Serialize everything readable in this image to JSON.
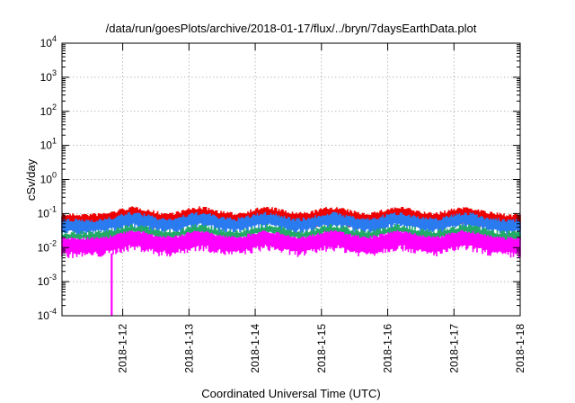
{
  "chart_data": {
    "type": "line",
    "title": "/data/run/goesPlots/archive/2018-01-17/flux/../bryn/7daysEarthData.plot",
    "xlabel": "Coordinated Universal Time (UTC)",
    "ylabel": "cSv/day",
    "xlim": [
      "2018-01-11T02:00",
      "2018-01-18T00:00"
    ],
    "ylim": [
      0.0001,
      10000
    ],
    "yscale": "log",
    "grid": true,
    "legend": "none",
    "x_ticks": [
      "2018-1-12",
      "2018-1-13",
      "2018-1-14",
      "2018-1-15",
      "2018-1-16",
      "2018-1-17",
      "2018-1-18"
    ],
    "y_ticks": [
      {
        "base": "10",
        "exp": "-4"
      },
      {
        "base": "10",
        "exp": "-3"
      },
      {
        "base": "10",
        "exp": "-2"
      },
      {
        "base": "10",
        "exp": "-1"
      },
      {
        "base": "10",
        "exp": "0"
      },
      {
        "base": "10",
        "exp": "1"
      },
      {
        "base": "10",
        "exp": "2"
      },
      {
        "base": "10",
        "exp": "3"
      },
      {
        "base": "10",
        "exp": "4"
      }
    ],
    "series": [
      {
        "color": "#ee0000",
        "baseline": 0.075,
        "spread_low": 0.5,
        "spread_high": 1.7
      },
      {
        "color": "#2a7bf0",
        "baseline": 0.055,
        "spread_low": 0.5,
        "spread_high": 1.6
      },
      {
        "color": "#22aa66",
        "baseline": 0.028,
        "spread_low": 0.6,
        "spread_high": 1.4
      },
      {
        "color": "#ff00ff",
        "baseline": 0.0135,
        "spread_low": 0.45,
        "spread_high": 1.9
      }
    ],
    "dropout": {
      "x": "2018-01-11T20:00",
      "y": 0.0001
    },
    "cycle_peaks": [
      "2018-01-12T04:00",
      "2018-01-13T04:00",
      "2018-01-14T04:00",
      "2018-01-15T04:00",
      "2018-01-16T04:00",
      "2018-01-17T04:00"
    ]
  }
}
